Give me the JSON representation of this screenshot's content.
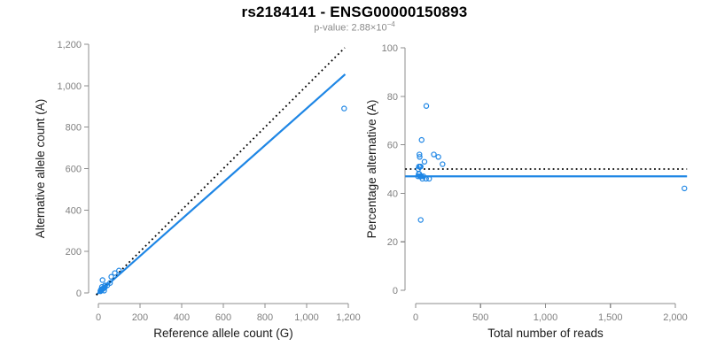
{
  "header": {
    "title": "rs2184141 - ENSG00000150893",
    "p_value_base": "p-value: 2.88×10",
    "p_value_exponent": "−4"
  },
  "colors": {
    "point_blue": "#1E86E5",
    "line_blue": "#1E86E5",
    "dotted_black": "#000000",
    "axis_line": "#8C8C8C",
    "tick_label": "#7F7F7F",
    "axis_title": "#1A1A1A",
    "background": "#FFFFFF"
  },
  "chart_data": [
    {
      "type": "scatter",
      "name": "allele-count-scatter",
      "xlabel": "Reference allele count (G)",
      "ylabel": "Alternative allele count (A)",
      "xlim": [
        0,
        1200
      ],
      "ylim": [
        0,
        1200
      ],
      "xticks": [
        0,
        200,
        400,
        600,
        800,
        1000,
        1200
      ],
      "xtick_labels": [
        "0",
        "200",
        "400",
        "600",
        "800",
        "1,000",
        "1,200"
      ],
      "yticks": [
        0,
        200,
        400,
        600,
        800,
        1000,
        1200
      ],
      "ytick_labels": [
        "0",
        "200",
        "400",
        "600",
        "800",
        "1,000",
        "1,200"
      ],
      "grid": false,
      "legend": false,
      "point_color": "#1E86E5",
      "points": [
        [
          20,
          62
        ],
        [
          17,
          29
        ],
        [
          13,
          16
        ],
        [
          14,
          17
        ],
        [
          62,
          78
        ],
        [
          79,
          96
        ],
        [
          32,
          36
        ],
        [
          99,
          108
        ],
        [
          12,
          13
        ],
        [
          16,
          17
        ],
        [
          19,
          20
        ],
        [
          10,
          10
        ],
        [
          10,
          8
        ],
        [
          13,
          11
        ],
        [
          15,
          13
        ],
        [
          17,
          16
        ],
        [
          20,
          18
        ],
        [
          23,
          21
        ],
        [
          28,
          24
        ],
        [
          32,
          28
        ],
        [
          43,
          37
        ],
        [
          56,
          48
        ],
        [
          28,
          11
        ],
        [
          1180,
          890
        ]
      ],
      "lines": [
        {
          "name": "fitted-line",
          "style": "solid",
          "color": "#1E86E5",
          "width": 2.2,
          "x": [
            -10,
            1185
          ],
          "y": [
            -9,
            1055
          ]
        },
        {
          "name": "identity-line",
          "style": "dotted",
          "color": "#000000",
          "width": 1.8,
          "x": [
            -10,
            1183
          ],
          "y": [
            -10,
            1183
          ]
        }
      ]
    },
    {
      "type": "scatter",
      "name": "percentage-alternative-scatter",
      "xlabel": "Total number of reads",
      "ylabel": "Percentage alternative (A)",
      "xlim": [
        0,
        2000
      ],
      "ylim": [
        0,
        100
      ],
      "xticks": [
        0,
        500,
        1000,
        1500,
        2000
      ],
      "xtick_labels": [
        "0",
        "500",
        "1,000",
        "1,500",
        "2,000"
      ],
      "yticks": [
        0,
        20,
        40,
        60,
        80,
        100
      ],
      "ytick_labels": [
        "0",
        "20",
        "40",
        "60",
        "80",
        "100"
      ],
      "grid": false,
      "legend": false,
      "point_color": "#1E86E5",
      "points": [
        [
          82,
          76
        ],
        [
          46,
          62
        ],
        [
          29,
          56
        ],
        [
          31,
          55
        ],
        [
          140,
          56
        ],
        [
          175,
          55
        ],
        [
          68,
          53
        ],
        [
          207,
          52
        ],
        [
          25,
          51
        ],
        [
          33,
          51
        ],
        [
          39,
          51
        ],
        [
          20,
          50
        ],
        [
          18,
          47
        ],
        [
          24,
          48
        ],
        [
          28,
          48
        ],
        [
          33,
          47
        ],
        [
          38,
          47
        ],
        [
          44,
          47
        ],
        [
          52,
          46
        ],
        [
          60,
          47
        ],
        [
          80,
          46
        ],
        [
          104,
          46
        ],
        [
          39,
          29
        ],
        [
          2070,
          42
        ]
      ],
      "lines": [
        {
          "name": "mean-percentage-line",
          "style": "solid",
          "color": "#1E86E5",
          "width": 2.2,
          "x": [
            -80,
            2090
          ],
          "y": [
            47,
            47
          ]
        },
        {
          "name": "expected-50-percent-line",
          "style": "dotted",
          "color": "#000000",
          "width": 1.8,
          "x": [
            -80,
            2090
          ],
          "y": [
            50,
            50
          ]
        }
      ]
    }
  ]
}
